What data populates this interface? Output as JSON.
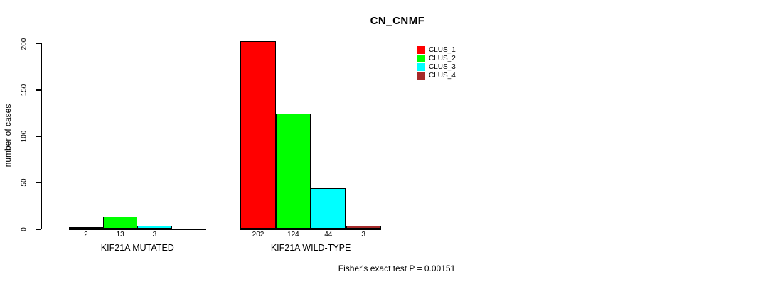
{
  "chart_data": {
    "type": "bar",
    "title": "CN_CNMF",
    "ylabel": "number of cases",
    "xlabel": "",
    "ylim": [
      0,
      200
    ],
    "yticks": [
      0,
      50,
      100,
      150,
      200
    ],
    "grid": false,
    "legend_position": "top-right",
    "legend": {
      "entries": [
        {
          "label": "CLUS_1",
          "color": "#FF0000"
        },
        {
          "label": "CLUS_2",
          "color": "#00FF00"
        },
        {
          "label": "CLUS_3",
          "color": "#00FFFF"
        },
        {
          "label": "CLUS_4",
          "color": "#A52A2A"
        }
      ]
    },
    "colors": {
      "CLUS_1": "#FF0000",
      "CLUS_2": "#00FF00",
      "CLUS_3": "#00FFFF",
      "CLUS_4": "#A52A2A"
    },
    "groups": [
      {
        "label": "KIF21A MUTATED",
        "slots": 4,
        "bars": [
          {
            "cluster": "CLUS_1",
            "value": 2,
            "value_label": "2"
          },
          {
            "cluster": "CLUS_2",
            "value": 13,
            "value_label": "13"
          },
          {
            "cluster": "CLUS_3",
            "value": 3,
            "value_label": "3"
          }
        ]
      },
      {
        "label": "KIF21A WILD-TYPE",
        "slots": 4,
        "bars": [
          {
            "cluster": "CLUS_1",
            "value": 202,
            "value_label": "202"
          },
          {
            "cluster": "CLUS_2",
            "value": 124,
            "value_label": "124"
          },
          {
            "cluster": "CLUS_3",
            "value": 44,
            "value_label": "44"
          },
          {
            "cluster": "CLUS_4",
            "value": 3,
            "value_label": "3"
          }
        ]
      }
    ],
    "footnote": "Fisher's exact test P = 0.00151",
    "background_color": "#FFFFFF",
    "axis_color": "#000000"
  }
}
